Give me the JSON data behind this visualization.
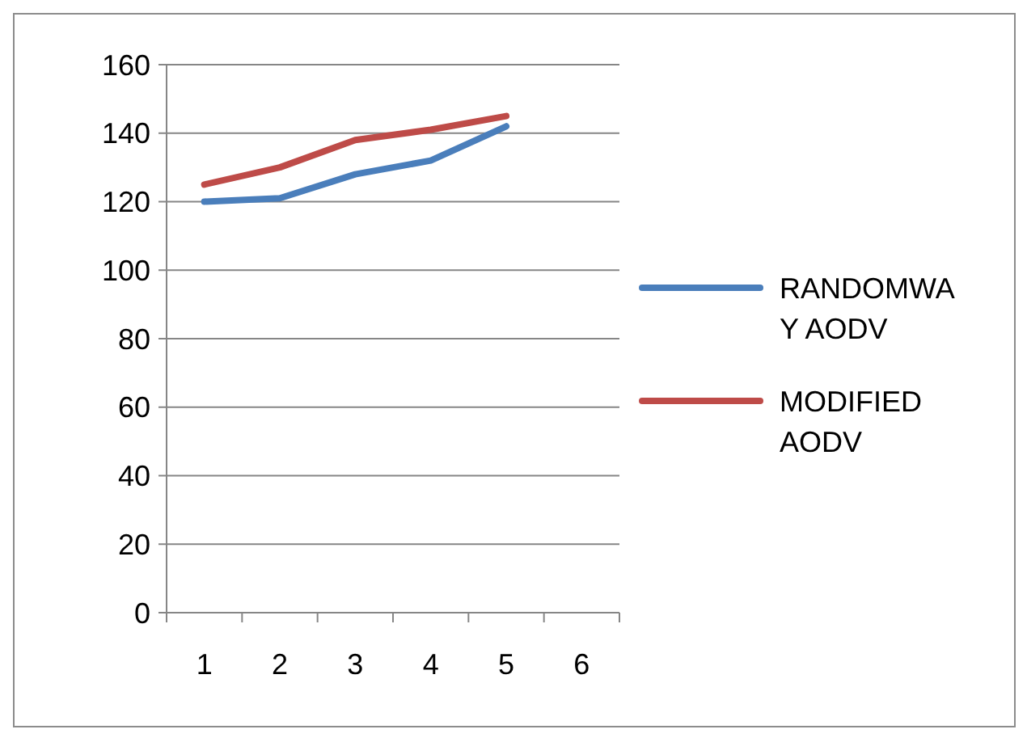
{
  "chart_data": {
    "type": "line",
    "categories": [
      "1",
      "2",
      "3",
      "4",
      "5",
      "6"
    ],
    "series": [
      {
        "name": "RANDOMWAY AODV",
        "color": "#4a7ebb",
        "values": [
          120,
          121,
          128,
          132,
          142,
          null
        ]
      },
      {
        "name": "MODIFIED AODV",
        "color": "#be4b48",
        "values": [
          125,
          130,
          138,
          141,
          145,
          null
        ]
      }
    ],
    "ylim": [
      0,
      160
    ],
    "yticks": [
      0,
      20,
      40,
      60,
      80,
      100,
      120,
      140,
      160
    ],
    "grid": "y",
    "legend": "right",
    "marker": "none",
    "line_style": "solid"
  }
}
